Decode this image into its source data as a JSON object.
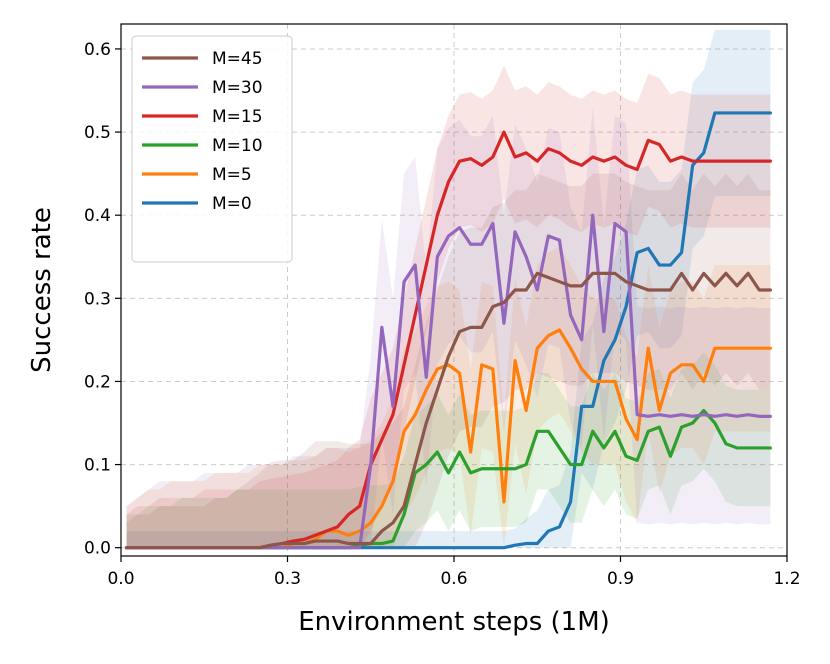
{
  "chart_data": {
    "type": "line",
    "title": "",
    "xlabel": "Environment steps (1M)",
    "ylabel": "Success rate",
    "xlim": [
      0.0,
      1.2
    ],
    "ylim": [
      -0.01,
      0.63
    ],
    "xticks": [
      0.0,
      0.3,
      0.6,
      0.9,
      1.2
    ],
    "xtick_labels": [
      "0.0",
      "0.3",
      "0.6",
      "0.9",
      "1.2"
    ],
    "yticks": [
      0.0,
      0.1,
      0.2,
      0.3,
      0.4,
      0.5,
      0.6
    ],
    "ytick_labels": [
      "0.0",
      "0.1",
      "0.2",
      "0.3",
      "0.4",
      "0.5",
      "0.6"
    ],
    "grid": true,
    "legend_position": "top-left",
    "x": [
      0.01,
      0.03,
      0.05,
      0.07,
      0.09,
      0.11,
      0.13,
      0.15,
      0.17,
      0.19,
      0.21,
      0.23,
      0.25,
      0.27,
      0.29,
      0.31,
      0.33,
      0.35,
      0.37,
      0.39,
      0.41,
      0.43,
      0.45,
      0.47,
      0.49,
      0.51,
      0.53,
      0.55,
      0.57,
      0.59,
      0.61,
      0.63,
      0.65,
      0.67,
      0.69,
      0.71,
      0.73,
      0.75,
      0.77,
      0.79,
      0.81,
      0.83,
      0.85,
      0.87,
      0.89,
      0.91,
      0.93,
      0.95,
      0.97,
      0.99,
      1.01,
      1.03,
      1.05,
      1.07,
      1.09,
      1.11,
      1.13,
      1.15,
      1.17
    ],
    "series": [
      {
        "name": "M=45",
        "color": "#8c564b",
        "values": [
          0,
          0,
          0,
          0,
          0,
          0,
          0,
          0,
          0,
          0,
          0,
          0,
          0,
          0.003,
          0.005,
          0.005,
          0.005,
          0.008,
          0.008,
          0.008,
          0.005,
          0.005,
          0.005,
          0.02,
          0.03,
          0.05,
          0.1,
          0.15,
          0.19,
          0.23,
          0.26,
          0.265,
          0.265,
          0.29,
          0.295,
          0.31,
          0.31,
          0.33,
          0.325,
          0.32,
          0.315,
          0.315,
          0.33,
          0.33,
          0.33,
          0.32,
          0.315,
          0.31,
          0.31,
          0.31,
          0.33,
          0.31,
          0.33,
          0.315,
          0.33,
          0.315,
          0.33,
          0.31,
          0.31
        ],
        "band": [
          0.03,
          0.04,
          0.04,
          0.05,
          0.05,
          0.05,
          0.05,
          0.05,
          0.06,
          0.06,
          0.07,
          0.08,
          0.09,
          0.1,
          0.1,
          0.1,
          0.11,
          0.12,
          0.12,
          0.12,
          0.12,
          0.12,
          0.12,
          0.12,
          0.12,
          0.12,
          0.12,
          0.12,
          0.12,
          0.12,
          0.12,
          0.12,
          0.12,
          0.12,
          0.12,
          0.12,
          0.12,
          0.12,
          0.12,
          0.12,
          0.12,
          0.12,
          0.12,
          0.12,
          0.12,
          0.12,
          0.12,
          0.12,
          0.12,
          0.12,
          0.12,
          0.12,
          0.12,
          0.12,
          0.12,
          0.12,
          0.12,
          0.12,
          0.12
        ]
      },
      {
        "name": "M=30",
        "color": "#9467bd",
        "values": [
          0,
          0,
          0,
          0,
          0,
          0,
          0,
          0,
          0,
          0,
          0,
          0,
          0,
          0,
          0,
          0,
          0,
          0,
          0,
          0,
          0,
          0,
          0.1,
          0.265,
          0.17,
          0.32,
          0.34,
          0.205,
          0.35,
          0.375,
          0.385,
          0.365,
          0.365,
          0.39,
          0.27,
          0.38,
          0.35,
          0.31,
          0.375,
          0.37,
          0.28,
          0.25,
          0.4,
          0.26,
          0.39,
          0.38,
          0.16,
          0.158,
          0.16,
          0.158,
          0.16,
          0.158,
          0.16,
          0.158,
          0.16,
          0.158,
          0.16,
          0.158,
          0.158
        ],
        "band": [
          0.05,
          0.06,
          0.07,
          0.08,
          0.08,
          0.08,
          0.08,
          0.09,
          0.09,
          0.09,
          0.09,
          0.1,
          0.1,
          0.1,
          0.1,
          0.11,
          0.11,
          0.11,
          0.12,
          0.12,
          0.12,
          0.12,
          0.13,
          0.13,
          0.13,
          0.13,
          0.13,
          0.13,
          0.13,
          0.13,
          0.13,
          0.13,
          0.13,
          0.13,
          0.13,
          0.13,
          0.13,
          0.13,
          0.13,
          0.13,
          0.13,
          0.13,
          0.13,
          0.13,
          0.13,
          0.13,
          0.13,
          0.13,
          0.13,
          0.13,
          0.13,
          0.13,
          0.13,
          0.13,
          0.13,
          0.13,
          0.13,
          0.13,
          0.13
        ]
      },
      {
        "name": "M=15",
        "color": "#d62728",
        "values": [
          0,
          0,
          0,
          0,
          0,
          0,
          0,
          0,
          0,
          0,
          0,
          0,
          0,
          0.003,
          0.005,
          0.008,
          0.01,
          0.015,
          0.02,
          0.025,
          0.04,
          0.05,
          0.1,
          0.13,
          0.16,
          0.22,
          0.28,
          0.34,
          0.4,
          0.44,
          0.465,
          0.468,
          0.46,
          0.47,
          0.5,
          0.47,
          0.475,
          0.465,
          0.48,
          0.475,
          0.465,
          0.46,
          0.47,
          0.465,
          0.47,
          0.46,
          0.455,
          0.49,
          0.485,
          0.465,
          0.47,
          0.465,
          0.465,
          0.465,
          0.465,
          0.465,
          0.465,
          0.465,
          0.465
        ],
        "band": [
          0.04,
          0.05,
          0.05,
          0.06,
          0.06,
          0.06,
          0.06,
          0.07,
          0.07,
          0.07,
          0.07,
          0.07,
          0.08,
          0.08,
          0.08,
          0.08,
          0.08,
          0.08,
          0.08,
          0.08,
          0.08,
          0.08,
          0.08,
          0.08,
          0.08,
          0.08,
          0.08,
          0.08,
          0.08,
          0.08,
          0.08,
          0.08,
          0.08,
          0.08,
          0.08,
          0.08,
          0.08,
          0.08,
          0.08,
          0.08,
          0.08,
          0.08,
          0.08,
          0.08,
          0.08,
          0.08,
          0.08,
          0.08,
          0.08,
          0.08,
          0.08,
          0.08,
          0.08,
          0.08,
          0.08,
          0.08,
          0.08,
          0.08,
          0.08
        ]
      },
      {
        "name": "M=10",
        "color": "#2ca02c",
        "values": [
          0,
          0,
          0,
          0,
          0,
          0,
          0,
          0,
          0,
          0,
          0,
          0,
          0,
          0,
          0,
          0,
          0,
          0,
          0,
          0,
          0,
          0.003,
          0.005,
          0.005,
          0.008,
          0.04,
          0.09,
          0.1,
          0.115,
          0.09,
          0.115,
          0.09,
          0.095,
          0.095,
          0.095,
          0.095,
          0.1,
          0.14,
          0.14,
          0.12,
          0.1,
          0.1,
          0.14,
          0.12,
          0.14,
          0.11,
          0.105,
          0.14,
          0.145,
          0.11,
          0.145,
          0.15,
          0.165,
          0.15,
          0.125,
          0.12,
          0.12,
          0.12,
          0.12
        ],
        "band": [
          0.04,
          0.04,
          0.05,
          0.05,
          0.05,
          0.06,
          0.06,
          0.06,
          0.06,
          0.06,
          0.07,
          0.07,
          0.07,
          0.07,
          0.07,
          0.07,
          0.07,
          0.07,
          0.07,
          0.07,
          0.07,
          0.07,
          0.07,
          0.07,
          0.07,
          0.07,
          0.07,
          0.07,
          0.07,
          0.07,
          0.07,
          0.07,
          0.07,
          0.07,
          0.07,
          0.07,
          0.07,
          0.07,
          0.07,
          0.07,
          0.07,
          0.07,
          0.07,
          0.07,
          0.07,
          0.07,
          0.07,
          0.07,
          0.07,
          0.07,
          0.07,
          0.07,
          0.07,
          0.07,
          0.07,
          0.07,
          0.07,
          0.07,
          0.07
        ]
      },
      {
        "name": "M=5",
        "color": "#ff7f0e",
        "values": [
          0,
          0,
          0,
          0,
          0,
          0,
          0,
          0,
          0,
          0,
          0,
          0,
          0,
          0,
          0,
          0.005,
          0.005,
          0.01,
          0.02,
          0.02,
          0.015,
          0.02,
          0.03,
          0.05,
          0.08,
          0.14,
          0.16,
          0.19,
          0.215,
          0.22,
          0.21,
          0.115,
          0.22,
          0.215,
          0.055,
          0.225,
          0.165,
          0.24,
          0.255,
          0.262,
          0.24,
          0.215,
          0.2,
          0.2,
          0.2,
          0.155,
          0.13,
          0.24,
          0.165,
          0.21,
          0.22,
          0.22,
          0.2,
          0.24,
          0.24,
          0.24,
          0.24,
          0.24,
          0.24
        ],
        "band": [
          0.05,
          0.06,
          0.07,
          0.07,
          0.08,
          0.08,
          0.08,
          0.08,
          0.09,
          0.09,
          0.09,
          0.09,
          0.1,
          0.1,
          0.1,
          0.1,
          0.1,
          0.1,
          0.1,
          0.1,
          0.1,
          0.1,
          0.1,
          0.1,
          0.1,
          0.1,
          0.1,
          0.1,
          0.1,
          0.1,
          0.1,
          0.1,
          0.1,
          0.1,
          0.1,
          0.1,
          0.1,
          0.1,
          0.1,
          0.1,
          0.1,
          0.1,
          0.1,
          0.1,
          0.1,
          0.1,
          0.1,
          0.1,
          0.1,
          0.1,
          0.1,
          0.1,
          0.1,
          0.1,
          0.1,
          0.1,
          0.1,
          0.1,
          0.1
        ]
      },
      {
        "name": "M=0",
        "color": "#1f77b4",
        "values": [
          0,
          0,
          0,
          0,
          0,
          0,
          0,
          0,
          0,
          0,
          0,
          0,
          0,
          0,
          0,
          0,
          0,
          0,
          0,
          0,
          0,
          0,
          0,
          0,
          0,
          0,
          0,
          0,
          0,
          0,
          0,
          0,
          0,
          0,
          0,
          0.003,
          0.005,
          0.005,
          0.02,
          0.025,
          0.055,
          0.17,
          0.17,
          0.225,
          0.25,
          0.29,
          0.355,
          0.36,
          0.34,
          0.34,
          0.355,
          0.46,
          0.475,
          0.523,
          0.523,
          0.523,
          0.523,
          0.523,
          0.523
        ],
        "band": [
          0.02,
          0.02,
          0.02,
          0.02,
          0.02,
          0.02,
          0.02,
          0.02,
          0.02,
          0.02,
          0.02,
          0.02,
          0.02,
          0.02,
          0.02,
          0.02,
          0.02,
          0.02,
          0.02,
          0.02,
          0.02,
          0.02,
          0.02,
          0.02,
          0.02,
          0.02,
          0.02,
          0.02,
          0.02,
          0.02,
          0.02,
          0.02,
          0.02,
          0.02,
          0.02,
          0.02,
          0.03,
          0.04,
          0.05,
          0.05,
          0.06,
          0.08,
          0.1,
          0.1,
          0.1,
          0.1,
          0.1,
          0.1,
          0.1,
          0.1,
          0.1,
          0.1,
          0.1,
          0.1,
          0.1,
          0.1,
          0.1,
          0.1,
          0.1
        ]
      }
    ]
  }
}
